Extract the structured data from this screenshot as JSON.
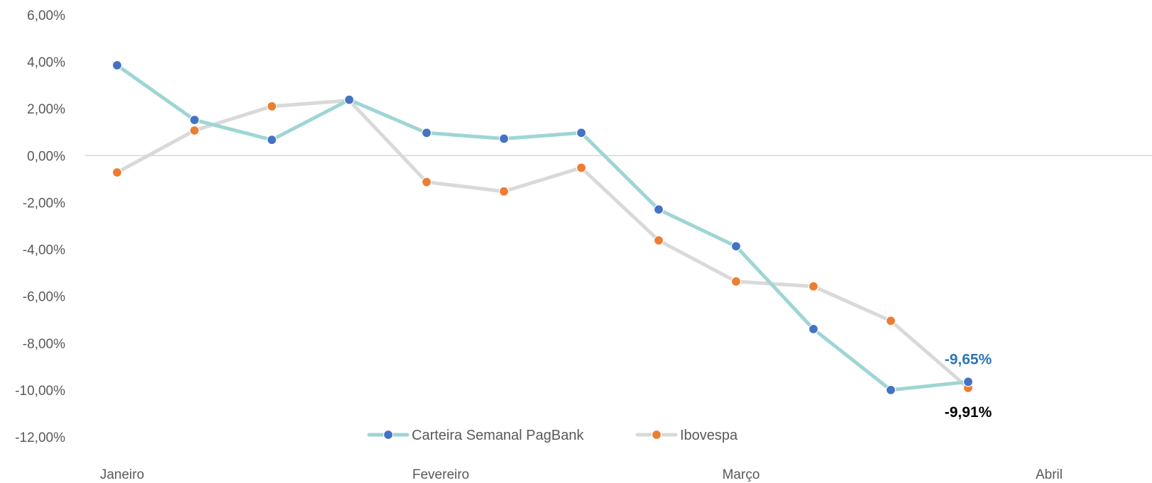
{
  "chart_data": {
    "type": "line",
    "title": "",
    "xlabel": "",
    "ylabel": "",
    "ylim": [
      -12,
      6
    ],
    "y_ticks": [
      6,
      4,
      2,
      0,
      -2,
      -4,
      -6,
      -8,
      -10,
      -12
    ],
    "y_tick_labels": [
      "6,00%",
      "4,00%",
      "2,00%",
      "0,00%",
      "-2,00%",
      "-4,00%",
      "-6,00%",
      "-8,00%",
      "-10,00%",
      "-12,00%"
    ],
    "category_labels": [
      "Janeiro",
      "Fevereiro",
      "Março",
      "Abril"
    ],
    "grid": false,
    "zero_line": true,
    "legend_position": "bottom",
    "series": [
      {
        "name": "Carteira Semanal PagBank",
        "line_color": "#9ED5D5",
        "marker_color": "#4472C4",
        "values": [
          3.85,
          1.52,
          0.67,
          2.38,
          0.97,
          0.72,
          0.97,
          -2.3,
          -3.87,
          -7.4,
          -10.0,
          -9.65
        ],
        "end_label": "-9,65%",
        "end_label_color": "#2E75B6"
      },
      {
        "name": "Ibovespa",
        "line_color": "#D9D9D9",
        "marker_color": "#ED7D31",
        "values": [
          -0.72,
          1.07,
          2.1,
          2.35,
          -1.13,
          -1.53,
          -0.52,
          -3.62,
          -5.37,
          -5.58,
          -7.05,
          -9.91
        ],
        "end_label": "-9,91%",
        "end_label_color": "#000000"
      }
    ]
  }
}
